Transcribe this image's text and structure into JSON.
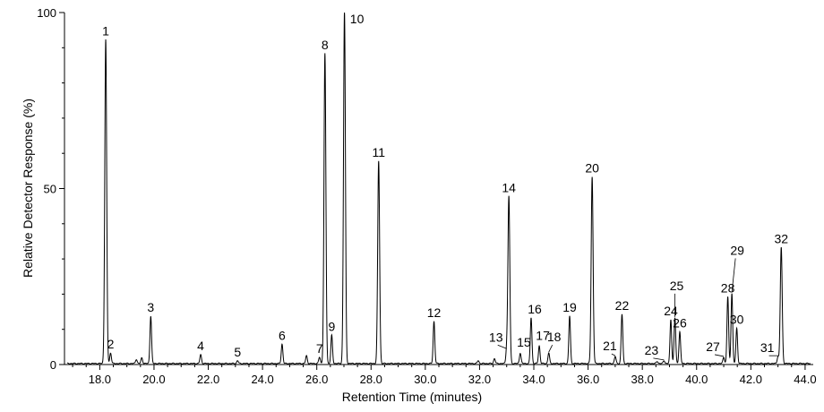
{
  "chart_data": {
    "type": "line",
    "title": "",
    "xlabel": "Retention Time (minutes)",
    "ylabel": "Relative Detector Response (%)",
    "xlim": [
      16.7,
      44.3
    ],
    "ylim": [
      0,
      100
    ],
    "x_ticks": [
      "18.0",
      "20.0",
      "22.0",
      "24.0",
      "26.0",
      "28.0",
      "30.0",
      "32.0",
      "34.0",
      "36.0",
      "38.0",
      "40.0",
      "42.0",
      "44.0"
    ],
    "y_ticks": [
      "0",
      "50",
      "100"
    ],
    "grid": false,
    "legend": "none",
    "line_color": "#000000",
    "baseline": 0.3,
    "peaks": [
      {
        "label": "1",
        "x": 18.22,
        "y": 92,
        "leader": false
      },
      {
        "label": "2",
        "x": 18.4,
        "y": 3,
        "leader": false
      },
      {
        "label": "3",
        "x": 19.88,
        "y": 13.5,
        "leader": false
      },
      {
        "label": "4",
        "x": 21.72,
        "y": 2.5,
        "leader": false
      },
      {
        "label": "5",
        "x": 23.08,
        "y": 0.8,
        "leader": false
      },
      {
        "label": "6",
        "x": 24.72,
        "y": 5.5,
        "leader": false
      },
      {
        "label": "7",
        "x": 26.1,
        "y": 1.8,
        "leader": false
      },
      {
        "label": "8",
        "x": 26.3,
        "y": 88,
        "leader": false
      },
      {
        "label": "9",
        "x": 26.55,
        "y": 8,
        "leader": false
      },
      {
        "label": "10",
        "x": 27.02,
        "y": 100,
        "leader": false
      },
      {
        "label": "11",
        "x": 28.28,
        "y": 57.5,
        "leader": false
      },
      {
        "label": "12",
        "x": 30.32,
        "y": 12,
        "leader": false
      },
      {
        "label": "13",
        "x": 33.0,
        "y": 4,
        "leader": true
      },
      {
        "label": "14",
        "x": 33.08,
        "y": 47.5,
        "leader": false
      },
      {
        "label": "15",
        "x": 33.5,
        "y": 3,
        "leader": false
      },
      {
        "label": "16",
        "x": 33.9,
        "y": 13,
        "leader": false
      },
      {
        "label": "17",
        "x": 34.2,
        "y": 5,
        "leader": false
      },
      {
        "label": "18",
        "x": 34.55,
        "y": 3,
        "leader": true
      },
      {
        "label": "19",
        "x": 35.32,
        "y": 13.5,
        "leader": false
      },
      {
        "label": "20",
        "x": 36.15,
        "y": 53,
        "leader": false
      },
      {
        "label": "21",
        "x": 37.0,
        "y": 2,
        "leader": true
      },
      {
        "label": "22",
        "x": 37.25,
        "y": 14,
        "leader": false
      },
      {
        "label": "23",
        "x": 38.8,
        "y": 0.8,
        "leader": true
      },
      {
        "label": "24",
        "x": 39.05,
        "y": 12.5,
        "leader": false
      },
      {
        "label": "25",
        "x": 39.2,
        "y": 13,
        "leader": true
      },
      {
        "label": "26",
        "x": 39.38,
        "y": 9,
        "leader": false
      },
      {
        "label": "27",
        "x": 41.0,
        "y": 1.8,
        "leader": true
      },
      {
        "label": "28",
        "x": 41.15,
        "y": 19,
        "leader": false
      },
      {
        "label": "29",
        "x": 41.3,
        "y": 20,
        "leader": true
      },
      {
        "label": "30",
        "x": 41.48,
        "y": 10,
        "leader": false
      },
      {
        "label": "31",
        "x": 43.0,
        "y": 2,
        "leader": true
      },
      {
        "label": "32",
        "x": 43.12,
        "y": 33,
        "leader": false
      }
    ],
    "minor_peaks": [
      {
        "x": 19.35,
        "y": 1.2
      },
      {
        "x": 19.55,
        "y": 1.6
      },
      {
        "x": 25.62,
        "y": 2.2
      },
      {
        "x": 31.95,
        "y": 0.8
      },
      {
        "x": 32.55,
        "y": 1.4
      },
      {
        "x": 38.55,
        "y": 0.6
      }
    ]
  }
}
